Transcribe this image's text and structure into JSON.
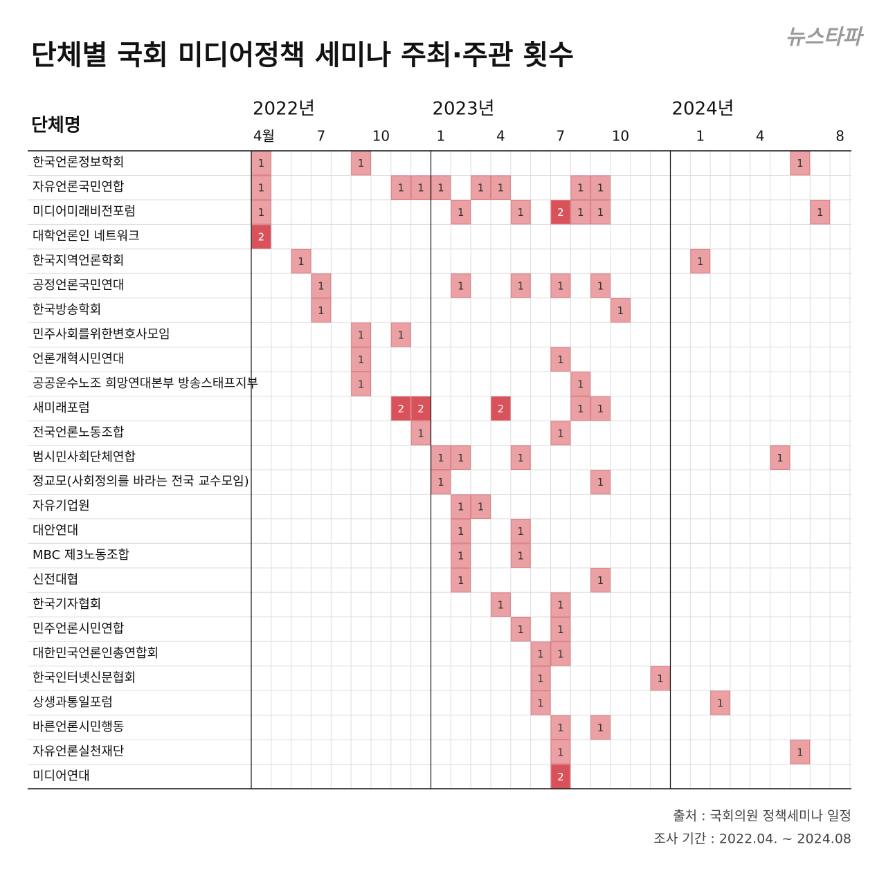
{
  "chart_data": {
    "type": "heatmap",
    "title": "단체별 국회 미디어정책 세미나 주최·주관 횟수",
    "logo": "뉴스타파",
    "row_header": "단체명",
    "years": [
      "2022년",
      null,
      null,
      null,
      null,
      null,
      null,
      null,
      null,
      "2023년",
      null,
      null,
      null,
      null,
      null,
      null,
      null,
      null,
      null,
      null,
      null,
      "2024년",
      null,
      null,
      null,
      null,
      null,
      null,
      null
    ],
    "months": [
      "4월",
      null,
      null,
      "7",
      null,
      null,
      "10",
      null,
      null,
      "1",
      null,
      null,
      "4",
      null,
      null,
      "7",
      null,
      null,
      "10",
      null,
      null,
      null,
      "1",
      null,
      null,
      "4",
      null,
      null,
      null,
      "8"
    ],
    "scale_colors": [
      "#eba0a4",
      "#d9525a"
    ],
    "rows": [
      {
        "name": "한국언론정보학회",
        "values": [
          1,
          null,
          null,
          null,
          null,
          1,
          null,
          null,
          null,
          null,
          null,
          null,
          null,
          null,
          null,
          null,
          null,
          null,
          null,
          null,
          null,
          null,
          null,
          null,
          null,
          null,
          null,
          1,
          null
        ]
      },
      {
        "name": "자유언론국민연합",
        "values": [
          1,
          null,
          null,
          null,
          null,
          null,
          null,
          1,
          1,
          1,
          null,
          1,
          1,
          null,
          null,
          null,
          1,
          1,
          null,
          null,
          null,
          null,
          null,
          null,
          null,
          null,
          null,
          null,
          null
        ]
      },
      {
        "name": "미디어미래비전포럼",
        "values": [
          1,
          null,
          null,
          null,
          null,
          null,
          null,
          null,
          null,
          null,
          1,
          null,
          null,
          1,
          null,
          2,
          1,
          1,
          null,
          null,
          null,
          null,
          null,
          null,
          null,
          null,
          null,
          null,
          1
        ]
      },
      {
        "name": "대학언론인 네트워크",
        "values": [
          2,
          null,
          null,
          null,
          null,
          null,
          null,
          null,
          null,
          null,
          null,
          null,
          null,
          null,
          null,
          null,
          null,
          null,
          null,
          null,
          null,
          null,
          null,
          null,
          null,
          null,
          null,
          null,
          null
        ]
      },
      {
        "name": "한국지역언론학회",
        "values": [
          null,
          null,
          1,
          null,
          null,
          null,
          null,
          null,
          null,
          null,
          null,
          null,
          null,
          null,
          null,
          null,
          null,
          null,
          null,
          null,
          null,
          null,
          1,
          null,
          null,
          null,
          null,
          null,
          null
        ]
      },
      {
        "name": "공정언론국민연대",
        "values": [
          null,
          null,
          null,
          1,
          null,
          null,
          null,
          null,
          null,
          null,
          1,
          null,
          null,
          1,
          null,
          1,
          null,
          1,
          null,
          null,
          null,
          null,
          null,
          null,
          null,
          null,
          null,
          null,
          null
        ]
      },
      {
        "name": "한국방송학회",
        "values": [
          null,
          null,
          null,
          1,
          null,
          null,
          null,
          null,
          null,
          null,
          null,
          null,
          null,
          null,
          null,
          null,
          null,
          null,
          1,
          null,
          null,
          null,
          null,
          null,
          null,
          null,
          null,
          null,
          null
        ]
      },
      {
        "name": "민주사회를위한변호사모임",
        "values": [
          null,
          null,
          null,
          null,
          null,
          1,
          null,
          1,
          null,
          null,
          null,
          null,
          null,
          null,
          null,
          null,
          null,
          null,
          null,
          null,
          null,
          null,
          null,
          null,
          null,
          null,
          null,
          null,
          null
        ]
      },
      {
        "name": "언론개혁시민연대",
        "values": [
          null,
          null,
          null,
          null,
          null,
          1,
          null,
          null,
          null,
          null,
          null,
          null,
          null,
          null,
          null,
          1,
          null,
          null,
          null,
          null,
          null,
          null,
          null,
          null,
          null,
          null,
          null,
          null,
          null
        ]
      },
      {
        "name": "공공운수노조 희망연대본부 방송스태프지부",
        "values": [
          null,
          null,
          null,
          null,
          null,
          1,
          null,
          null,
          null,
          null,
          null,
          null,
          null,
          null,
          null,
          null,
          1,
          null,
          null,
          null,
          null,
          null,
          null,
          null,
          null,
          null,
          null,
          null,
          null
        ]
      },
      {
        "name": "새미래포럼",
        "values": [
          null,
          null,
          null,
          null,
          null,
          null,
          null,
          2,
          2,
          null,
          null,
          null,
          2,
          null,
          null,
          null,
          1,
          1,
          null,
          null,
          null,
          null,
          null,
          null,
          null,
          null,
          null,
          null,
          null
        ]
      },
      {
        "name": "전국언론노동조합",
        "values": [
          null,
          null,
          null,
          null,
          null,
          null,
          null,
          null,
          1,
          null,
          null,
          null,
          null,
          null,
          null,
          1,
          null,
          null,
          null,
          null,
          null,
          null,
          null,
          null,
          null,
          null,
          null,
          null,
          null
        ]
      },
      {
        "name": "범시민사회단체연합",
        "values": [
          null,
          null,
          null,
          null,
          null,
          null,
          null,
          null,
          null,
          1,
          1,
          null,
          null,
          1,
          null,
          null,
          null,
          null,
          null,
          null,
          null,
          null,
          null,
          null,
          null,
          null,
          1,
          null,
          null
        ]
      },
      {
        "name": "정교모(사회정의를 바라는 전국 교수모임)",
        "values": [
          null,
          null,
          null,
          null,
          null,
          null,
          null,
          null,
          null,
          1,
          null,
          null,
          null,
          null,
          null,
          null,
          null,
          1,
          null,
          null,
          null,
          null,
          null,
          null,
          null,
          null,
          null,
          null,
          null
        ]
      },
      {
        "name": "자유기업원",
        "values": [
          null,
          null,
          null,
          null,
          null,
          null,
          null,
          null,
          null,
          null,
          1,
          1,
          null,
          null,
          null,
          null,
          null,
          null,
          null,
          null,
          null,
          null,
          null,
          null,
          null,
          null,
          null,
          null,
          null
        ]
      },
      {
        "name": "대안연대",
        "values": [
          null,
          null,
          null,
          null,
          null,
          null,
          null,
          null,
          null,
          null,
          1,
          null,
          null,
          1,
          null,
          null,
          null,
          null,
          null,
          null,
          null,
          null,
          null,
          null,
          null,
          null,
          null,
          null,
          null
        ]
      },
      {
        "name": "MBC 제3노동조합",
        "values": [
          null,
          null,
          null,
          null,
          null,
          null,
          null,
          null,
          null,
          null,
          1,
          null,
          null,
          1,
          null,
          null,
          null,
          null,
          null,
          null,
          null,
          null,
          null,
          null,
          null,
          null,
          null,
          null,
          null
        ]
      },
      {
        "name": "신전대협",
        "values": [
          null,
          null,
          null,
          null,
          null,
          null,
          null,
          null,
          null,
          null,
          1,
          null,
          null,
          null,
          null,
          null,
          null,
          1,
          null,
          null,
          null,
          null,
          null,
          null,
          null,
          null,
          null,
          null,
          null
        ]
      },
      {
        "name": "한국기자협회",
        "values": [
          null,
          null,
          null,
          null,
          null,
          null,
          null,
          null,
          null,
          null,
          null,
          null,
          1,
          null,
          null,
          1,
          null,
          null,
          null,
          null,
          null,
          null,
          null,
          null,
          null,
          null,
          null,
          null,
          null
        ]
      },
      {
        "name": "민주언론시민연합",
        "values": [
          null,
          null,
          null,
          null,
          null,
          null,
          null,
          null,
          null,
          null,
          null,
          null,
          null,
          1,
          null,
          1,
          null,
          null,
          null,
          null,
          null,
          null,
          null,
          null,
          null,
          null,
          null,
          null,
          null
        ]
      },
      {
        "name": "대한민국언론인총연합회",
        "values": [
          null,
          null,
          null,
          null,
          null,
          null,
          null,
          null,
          null,
          null,
          null,
          null,
          null,
          null,
          1,
          1,
          null,
          null,
          null,
          null,
          null,
          null,
          null,
          null,
          null,
          null,
          null,
          null,
          null
        ]
      },
      {
        "name": "한국인터넷신문협회",
        "values": [
          null,
          null,
          null,
          null,
          null,
          null,
          null,
          null,
          null,
          null,
          null,
          null,
          null,
          null,
          1,
          null,
          null,
          null,
          null,
          null,
          1,
          null,
          null,
          null,
          null,
          null,
          null,
          null,
          null
        ]
      },
      {
        "name": "상생과통일포럼",
        "values": [
          null,
          null,
          null,
          null,
          null,
          null,
          null,
          null,
          null,
          null,
          null,
          null,
          null,
          null,
          1,
          null,
          null,
          null,
          null,
          null,
          null,
          null,
          null,
          1,
          null,
          null,
          null,
          null,
          null
        ]
      },
      {
        "name": "바른언론시민행동",
        "values": [
          null,
          null,
          null,
          null,
          null,
          null,
          null,
          null,
          null,
          null,
          null,
          null,
          null,
          null,
          null,
          1,
          null,
          1,
          null,
          null,
          null,
          null,
          null,
          null,
          null,
          null,
          null,
          null,
          null
        ]
      },
      {
        "name": "자유언론실천재단",
        "values": [
          null,
          null,
          null,
          null,
          null,
          null,
          null,
          null,
          null,
          null,
          null,
          null,
          null,
          null,
          null,
          1,
          null,
          null,
          null,
          null,
          null,
          null,
          null,
          null,
          null,
          null,
          null,
          1,
          null
        ]
      },
      {
        "name": "미디어연대",
        "values": [
          null,
          null,
          null,
          null,
          null,
          null,
          null,
          null,
          null,
          null,
          null,
          null,
          null,
          null,
          null,
          2,
          null,
          null,
          null,
          null,
          null,
          null,
          null,
          null,
          null,
          null,
          null,
          null,
          null
        ]
      }
    ],
    "source": "출처 : 국회의원 정책세미나 일정",
    "period": "조사 기간 : 2022.04. ~ 2024.08"
  }
}
